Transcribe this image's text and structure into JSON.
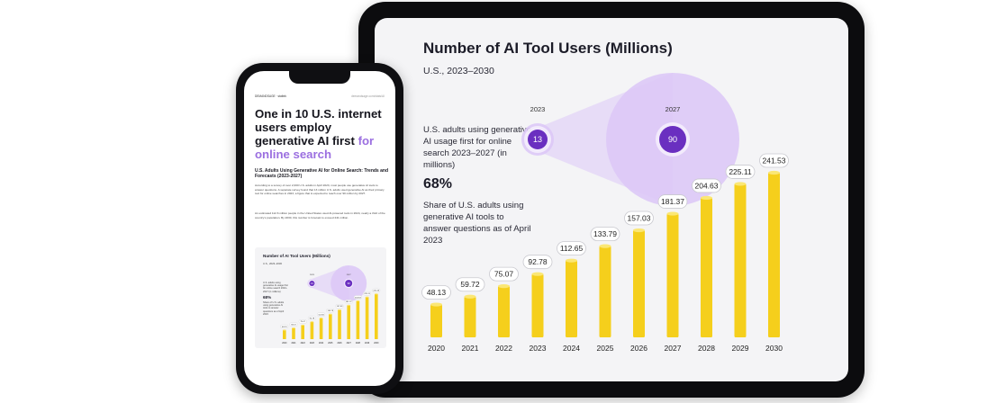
{
  "tablet": {
    "title": "Number of AI Tool Users (Millions)",
    "subtitle": "U.S., 2023–2030",
    "description": "U.S. adults using generative AI usage first for online search 2023–2027 (in millions)",
    "stat_value": "68%",
    "stat_description": "Share of U.S. adults using generative AI tools to answer questions as of April 2023"
  },
  "phone": {
    "brand_left": "DEMANDSAGE · statbrk",
    "brand_right": "demandsage.com/stats/AI",
    "headline_part1": "One in 10 U.S. internet users employ generative AI first",
    "headline_part2": "for online search",
    "subheading": "U.S. Adults Using Generative AI for Online Search: Trends and Forecasts (2023-2027)",
    "body1": "According to a survey of over 2,000 U.S. adults in April 2023, most people use generative AI tools to answer questions. A separate survey found that 13 million U.S. adults used generative AI as their primary tool for online searches in 2023, a figure that is expected to reach over 90 million by 2027.",
    "body2": "An estimated 112.6 million people in the United States used AI-powered tools in 2024, nearly a third of the country's population. By 2030, this number is forecast to exceed 241 million.",
    "chart_title": "Number of AI Tool Users (Millions)",
    "chart_subtitle": "U.S., 2023–2030",
    "chart_description": "U.S. adults using generative AI usage first for online search 2023–2027 (in millions)",
    "chart_stat_value": "68%",
    "chart_stat_description": "Share of U.S. adults using generative AI tools to answer questions as of April 2023"
  },
  "colors": {
    "bar": "#f5cf1c",
    "bar_top": "#fbe774",
    "bubble": "#ddc9f7",
    "bubble_dot": "#6a2fc0",
    "accent": "#9b6fe0"
  },
  "chart_data": {
    "type": "bar",
    "title": "Number of AI Tool Users (Millions)",
    "subtitle": "U.S., 2023–2030",
    "categories": [
      "2020",
      "2021",
      "2022",
      "2023",
      "2024",
      "2025",
      "2026",
      "2027",
      "2028",
      "2029",
      "2030"
    ],
    "values": [
      48.13,
      59.72,
      75.07,
      92.78,
      112.65,
      133.79,
      157.03,
      181.37,
      204.63,
      225.11,
      241.53
    ],
    "ylim": [
      0,
      260
    ],
    "grid": false,
    "legend": "none",
    "callouts": [
      {
        "year": "2023",
        "value": 13
      },
      {
        "year": "2027",
        "value": 90
      }
    ]
  }
}
